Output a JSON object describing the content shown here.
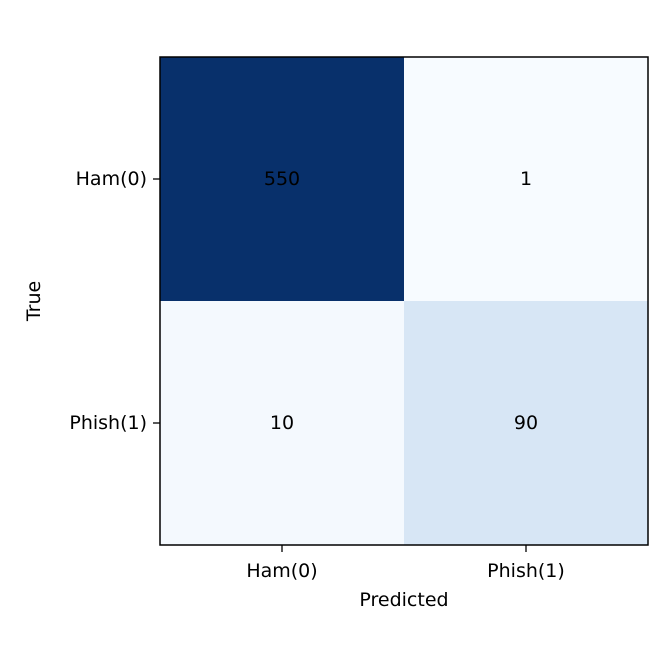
{
  "chart_data": {
    "type": "heatmap",
    "title": "",
    "xlabel": "Predicted",
    "ylabel": "True",
    "x_categories": [
      "Ham(0)",
      "Phish(1)"
    ],
    "y_categories": [
      "Ham(0)",
      "Phish(1)"
    ],
    "values": [
      [
        550,
        1
      ],
      [
        10,
        90
      ]
    ],
    "colormap": "Blues",
    "colors": {
      "high": "#08306b",
      "low": "#f7fbff",
      "text": "#000000",
      "frame": "#000000"
    },
    "grid": false,
    "legend": "none"
  }
}
